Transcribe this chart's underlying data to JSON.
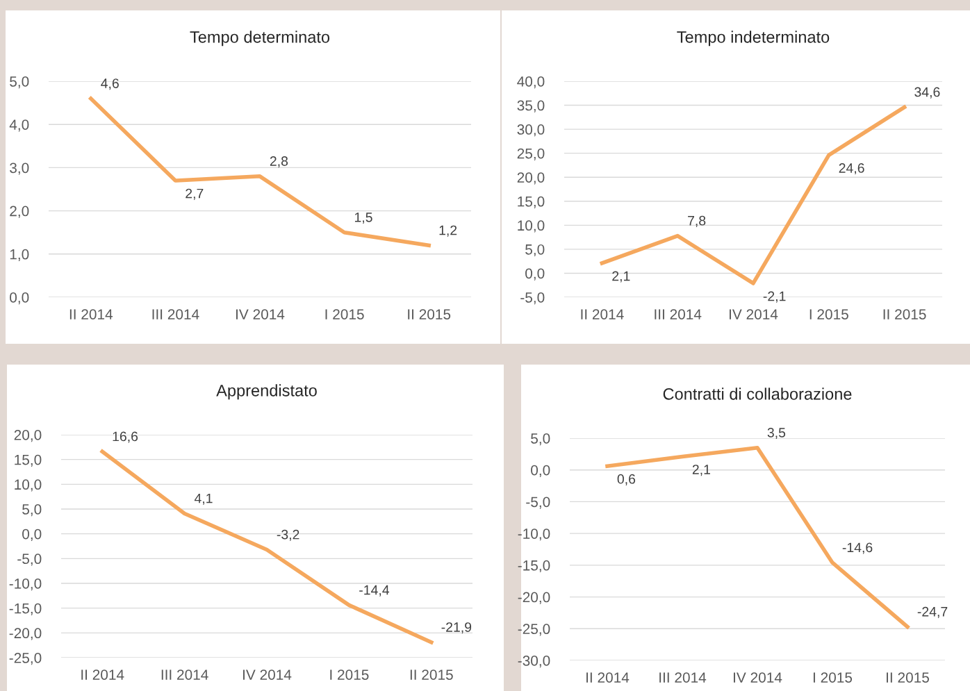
{
  "chart_data": [
    {
      "type": "line",
      "title": "Tempo determinato",
      "categories": [
        "II 2014",
        "III 2014",
        "IV 2014",
        "I 2015",
        "II 2015"
      ],
      "series": [
        {
          "color": "#f5a85e",
          "values": [
            4.6,
            2.7,
            2.8,
            1.5,
            1.2
          ]
        }
      ],
      "value_labels": [
        "4,6",
        "2,7",
        "2,8",
        "1,5",
        "1,2"
      ],
      "ylim": [
        0,
        5
      ],
      "yticks": [
        {
          "value": 0,
          "label": "0,0"
        },
        {
          "value": 1,
          "label": "1,0"
        },
        {
          "value": 2,
          "label": "2,0"
        },
        {
          "value": 3,
          "label": "3,0"
        },
        {
          "value": 4,
          "label": "4,0"
        },
        {
          "value": 5,
          "label": "5,0"
        }
      ],
      "grid": "y",
      "marker": "none",
      "line_style": "solid"
    },
    {
      "type": "line",
      "title": "Tempo indeterminato",
      "categories": [
        "II 2014",
        "III 2014",
        "IV 2014",
        "I 2015",
        "II 2015"
      ],
      "series": [
        {
          "color": "#f5a85e",
          "values": [
            2.1,
            7.8,
            -2.1,
            24.6,
            34.6
          ]
        }
      ],
      "value_labels": [
        "2,1",
        "7,8",
        "-2,1",
        "24,6",
        "34,6"
      ],
      "ylim": [
        -5,
        40
      ],
      "yticks": [
        {
          "value": -5,
          "label": "-5,0"
        },
        {
          "value": 0,
          "label": "0,0"
        },
        {
          "value": 5,
          "label": "5,0"
        },
        {
          "value": 10,
          "label": "10,0"
        },
        {
          "value": 15,
          "label": "15,0"
        },
        {
          "value": 20,
          "label": "20,0"
        },
        {
          "value": 25,
          "label": "25,0"
        },
        {
          "value": 30,
          "label": "30,0"
        },
        {
          "value": 35,
          "label": "35,0"
        },
        {
          "value": 40,
          "label": "40,0"
        }
      ],
      "grid": "y",
      "marker": "none",
      "line_style": "solid"
    },
    {
      "type": "line",
      "title": "Apprendistato",
      "categories": [
        "II 2014",
        "III 2014",
        "IV 2014",
        "I 2015",
        "II 2015"
      ],
      "series": [
        {
          "color": "#f5a85e",
          "values": [
            16.6,
            4.1,
            -3.2,
            -14.4,
            -21.9
          ]
        }
      ],
      "value_labels": [
        "16,6",
        "4,1",
        "-3,2",
        "-14,4",
        "-21,9"
      ],
      "ylim": [
        -25,
        20
      ],
      "yticks": [
        {
          "value": -25,
          "label": "-25,0"
        },
        {
          "value": -20,
          "label": "-20,0"
        },
        {
          "value": -15,
          "label": "-15,0"
        },
        {
          "value": -10,
          "label": "-10,0"
        },
        {
          "value": -5,
          "label": "-5,0"
        },
        {
          "value": 0,
          "label": "0,0"
        },
        {
          "value": 5,
          "label": "5,0"
        },
        {
          "value": 10,
          "label": "10,0"
        },
        {
          "value": 15,
          "label": "15,0"
        },
        {
          "value": 20,
          "label": "20,0"
        }
      ],
      "grid": "y",
      "marker": "none",
      "line_style": "solid"
    },
    {
      "type": "line",
      "title": "Contratti di collaborazione",
      "categories": [
        "II 2014",
        "III 2014",
        "IV 2014",
        "I 2015",
        "II 2015"
      ],
      "series": [
        {
          "color": "#f5a85e",
          "values": [
            0.6,
            2.1,
            3.5,
            -14.6,
            -24.7
          ]
        }
      ],
      "value_labels": [
        "0,6",
        "2,1",
        "3,5",
        "-14,6",
        "-24,7"
      ],
      "ylim": [
        -30,
        5
      ],
      "yticks": [
        {
          "value": -30,
          "label": "-30,0"
        },
        {
          "value": -25,
          "label": "-25,0"
        },
        {
          "value": -20,
          "label": "-20,0"
        },
        {
          "value": -15,
          "label": "-15,0"
        },
        {
          "value": -10,
          "label": "-10,0"
        },
        {
          "value": -5,
          "label": "-5,0"
        },
        {
          "value": 0,
          "label": "0,0"
        },
        {
          "value": 5,
          "label": "5,0"
        }
      ],
      "grid": "y",
      "marker": "none",
      "line_style": "solid"
    }
  ]
}
